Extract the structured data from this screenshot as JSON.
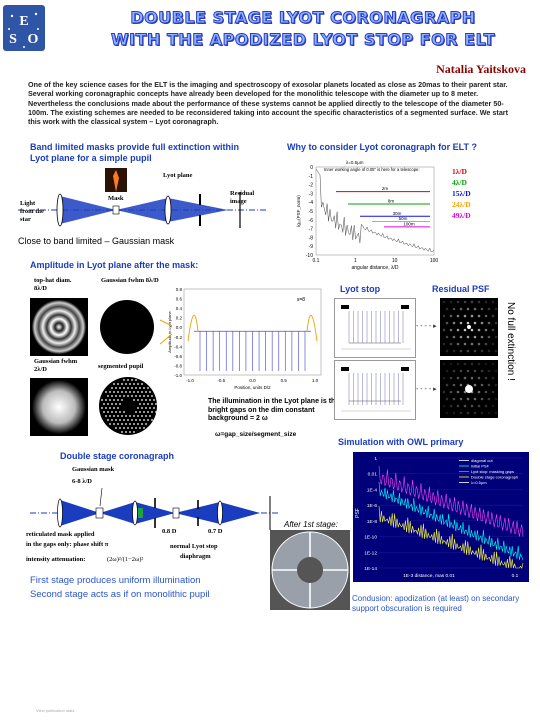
{
  "title_line1": "DOUBLE STAGE LYOT CORONAGRAPH",
  "title_line2": "WITH THE APODIZED LYOT STOP FOR ELT",
  "author": "Natalia Yaitskova",
  "abstract": "One of the key science cases for the ELT is the imaging and spectroscopy of exosolar planets located as close as 20mas to their parent star. Several working coronagraphic concepts have already been developed for the monolithic telescope with the diameter up to 8 meter. Nevertheless the conclusions made about the performance of these systems cannot be applied directly to the telescope of the diameter 50-100m. The existing schemes are needed to be reconsidered taking into account the specific characteristics of a segmented surface. We start this work with the classical system – Lyot coronagraph.",
  "sec_band": {
    "heading": "Band limited masks provide full extinction within Lyot plane for a simple pupil",
    "lyot_plane": "Lyot plane",
    "mask": "Mask",
    "residual": "Residual image",
    "light": "Light from the star",
    "caption": "Close to band limited – Gaussian mask"
  },
  "sec_why": {
    "heading": "Why to consider Lyot coronagraph for ELT ?",
    "note1": "λ=0.5μm",
    "note2": "Inner working angle of 0.05\" is here for a telescope:",
    "xlabel": "angular distance, λ/D",
    "ylabel": "lg₁₀(PSF_norm)",
    "curve_labels": [
      "2m",
      "8m",
      "30m",
      "50m",
      "100m"
    ],
    "legend": [
      "1λ/D",
      "4λ/D",
      "15λ/D",
      "24λ/D",
      "49λ/D"
    ],
    "legend_colors": [
      "#e00000",
      "#00a000",
      "#1010e0",
      "#ffa000",
      "#e000e0"
    ],
    "xticks": [
      "0.1",
      "1",
      "10",
      "100"
    ],
    "yticks": [
      "0",
      "-1",
      "-2",
      "-3",
      "-4",
      "-5",
      "-6",
      "-7",
      "-8",
      "-9",
      "-10"
    ]
  },
  "sec_amp": {
    "heading": "Amplitude in Lyot plane after the mask:",
    "tophat": "top-hat diam. 8λ/D",
    "gauss8": "Gaussian fwhm 8λ/D",
    "gauss2": "Gaussian fwhm 2λ/D",
    "segpupil": "segmented pupil",
    "s_label": "s=8",
    "xlabel": "Position, units D/2",
    "ylabel": "Amplitude in Lyot plane",
    "xticks": [
      "-1.0",
      "-0.5",
      "0.0",
      "0.5",
      "1.0"
    ],
    "yticks": [
      "0.8",
      "0.6",
      "0.4",
      "0.2",
      "0.0",
      "-0.2",
      "-0.4",
      "-0.6",
      "-0.8",
      "-1.0"
    ],
    "note": "The illumination in the Lyot plane is the bright gaps on the dim constant background = 2 ω",
    "omega": "ω=gap_size/segment_size"
  },
  "sec_stop": {
    "lyot_stop": "Lyot stop",
    "residual_psf": "Residual PSF",
    "side": "No full extinction !"
  },
  "sec_double": {
    "heading": "Double stage coronagraph",
    "gauss_mask": "Gaussian mask",
    "gauss_size": "6-8 λ/D",
    "left_note1": "reticulated mask applied",
    "left_note2": "in the gaps only: phase shift π",
    "left_note3": "intensity attenuation:",
    "formula": "(2ω)²/(1−2ω)²",
    "d08": "0.8 D",
    "d07": "0.7 D",
    "stop_note1": "normal Lyot stop",
    "stop_note2": "diaphragm",
    "after": "After 1st stage:",
    "line1": "First stage produces uniform illumination",
    "line2": "Second stage acts as if on monolithic pupil"
  },
  "sec_sim": {
    "heading": "Simulation with OWL primary",
    "legend": [
      "diagonal cut",
      "initial PSF",
      "Lyot stop: masking gaps",
      "Double stage coronagraph",
      "λ=0.5μm"
    ],
    "legend_colors": [
      "#ffffff",
      "#00ffff",
      "#ff40ff",
      "#ffff40",
      "#ffffff"
    ],
    "yticks": [
      "1",
      "0.01",
      "1E-4",
      "1E-6",
      "1E-8",
      "1E-10",
      "1E-12",
      "1E-14"
    ],
    "xlabel": "1E-3  distance, mas  0.01",
    "xtick_right": "0.1",
    "ylabel": "PSF",
    "conclusion": "Condusion: apodization (at least) on secondary support obscuration is required"
  },
  "footer": "View publication stats"
}
